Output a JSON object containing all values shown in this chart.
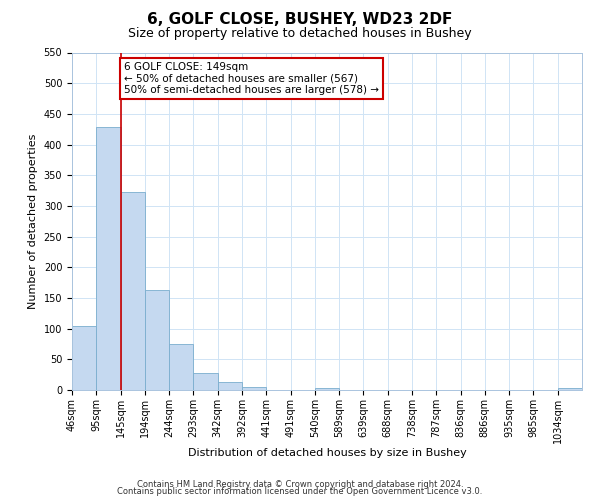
{
  "title": "6, GOLF CLOSE, BUSHEY, WD23 2DF",
  "subtitle": "Size of property relative to detached houses in Bushey",
  "xlabel": "Distribution of detached houses by size in Bushey",
  "ylabel": "Number of detached properties",
  "bar_labels": [
    "46sqm",
    "95sqm",
    "145sqm",
    "194sqm",
    "244sqm",
    "293sqm",
    "342sqm",
    "392sqm",
    "441sqm",
    "491sqm",
    "540sqm",
    "589sqm",
    "639sqm",
    "688sqm",
    "738sqm",
    "787sqm",
    "836sqm",
    "886sqm",
    "935sqm",
    "985sqm",
    "1034sqm"
  ],
  "bar_values": [
    105,
    428,
    322,
    163,
    75,
    27,
    13,
    5,
    0,
    0,
    3,
    0,
    0,
    0,
    0,
    0,
    0,
    0,
    0,
    0,
    4
  ],
  "bar_color": "#c5d9f0",
  "bar_edge_color": "#7aadce",
  "property_line_x": 2,
  "property_line_color": "#cc0000",
  "ylim": [
    0,
    550
  ],
  "yticks": [
    0,
    50,
    100,
    150,
    200,
    250,
    300,
    350,
    400,
    450,
    500,
    550
  ],
  "annotation_box_text": "6 GOLF CLOSE: 149sqm\n← 50% of detached houses are smaller (567)\n50% of semi-detached houses are larger (578) →",
  "footer_line1": "Contains HM Land Registry data © Crown copyright and database right 2024.",
  "footer_line2": "Contains public sector information licensed under the Open Government Licence v3.0.",
  "background_color": "#ffffff",
  "grid_color": "#d0e4f5",
  "title_fontsize": 11,
  "subtitle_fontsize": 9,
  "axis_label_fontsize": 8,
  "tick_fontsize": 7,
  "ann_fontsize": 7.5,
  "footer_fontsize": 6
}
